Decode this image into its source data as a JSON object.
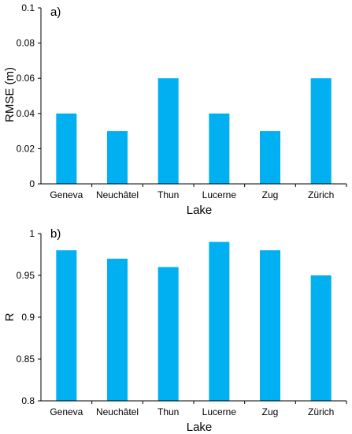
{
  "chart_data": [
    {
      "type": "bar",
      "panel_label": "a)",
      "categories": [
        "Geneva",
        "Neuchâtel",
        "Thun",
        "Lucerne",
        "Zug",
        "Zürich"
      ],
      "values": [
        0.04,
        0.03,
        0.06,
        0.04,
        0.03,
        0.06
      ],
      "xlabel": "Lake",
      "ylabel": "RMSE (m)",
      "ylim": [
        0,
        0.1
      ],
      "yticks": [
        "0",
        "0.02",
        "0.04",
        "0.06",
        "0.08",
        "0.1"
      ],
      "bar_color": "#00b0f0",
      "grid": false
    },
    {
      "type": "bar",
      "panel_label": "b)",
      "categories": [
        "Geneva",
        "Neuchâtel",
        "Thun",
        "Lucerne",
        "Zug",
        "Zürich"
      ],
      "values": [
        0.98,
        0.97,
        0.96,
        0.99,
        0.98,
        0.95
      ],
      "xlabel": "Lake",
      "ylabel": "R",
      "ylim": [
        0.8,
        1.0
      ],
      "yticks": [
        "0.8",
        "0.85",
        "0.9",
        "0.95",
        "1"
      ],
      "bar_color": "#00b0f0",
      "grid": false
    }
  ]
}
